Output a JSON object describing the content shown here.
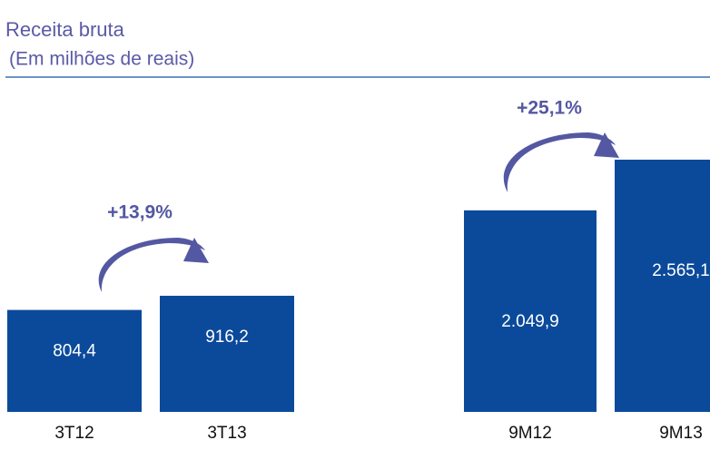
{
  "header": {
    "title": "Receita bruta",
    "subtitle": "(Em milhões de reais)"
  },
  "chart_data": [
    {
      "type": "bar",
      "categories": [
        "3T12",
        "3T13"
      ],
      "values": [
        804.4,
        916.2
      ],
      "value_labels": [
        "804,4",
        "916,2"
      ],
      "color": "#0b4a9b",
      "annotation": "+13,9%"
    },
    {
      "type": "bar",
      "categories": [
        "9M12",
        "9M13"
      ],
      "values": [
        2049.9,
        2565.1
      ],
      "value_labels": [
        "2.049,9",
        "2.565,1"
      ],
      "color": "#0b4a9b",
      "annotation": "+25,1%"
    }
  ]
}
